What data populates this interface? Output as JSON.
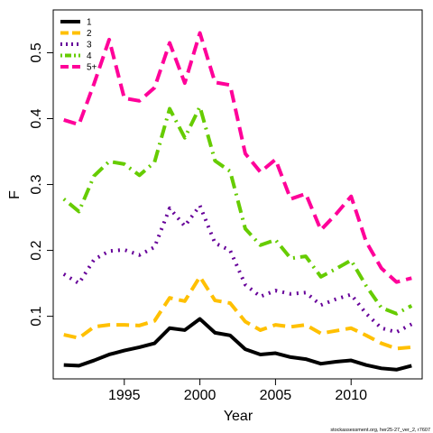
{
  "chart_data": {
    "type": "line",
    "title": "",
    "xlabel": "Year",
    "ylabel": "F",
    "xlim": [
      1990.3,
      2014.7
    ],
    "ylim": [
      0.005,
      0.565
    ],
    "x_ticks": [
      1995,
      2000,
      2005,
      2010
    ],
    "y_ticks": [
      0.1,
      0.2,
      0.3,
      0.4,
      0.5
    ],
    "grid": false,
    "legend_position": "top-left",
    "x": [
      1991,
      1992,
      1993,
      1994,
      1995,
      1996,
      1997,
      1998,
      1999,
      2000,
      2001,
      2002,
      2003,
      2004,
      2005,
      2006,
      2007,
      2008,
      2009,
      2010,
      2011,
      2012,
      2013,
      2014
    ],
    "series": [
      {
        "name": "1",
        "color": "#000000",
        "dash": "solid",
        "values": [
          0.026,
          0.025,
          0.033,
          0.042,
          0.048,
          0.053,
          0.059,
          0.082,
          0.079,
          0.096,
          0.075,
          0.071,
          0.05,
          0.042,
          0.044,
          0.038,
          0.035,
          0.028,
          0.031,
          0.033,
          0.026,
          0.021,
          0.019,
          0.025
        ]
      },
      {
        "name": "2",
        "color": "#FFC000",
        "dash": "long-dash",
        "values": [
          0.072,
          0.067,
          0.084,
          0.087,
          0.087,
          0.086,
          0.093,
          0.128,
          0.123,
          0.16,
          0.124,
          0.12,
          0.092,
          0.079,
          0.087,
          0.084,
          0.087,
          0.074,
          0.078,
          0.082,
          0.071,
          0.059,
          0.051,
          0.053
        ]
      },
      {
        "name": "3",
        "color": "#660099",
        "dash": "dotted",
        "values": [
          0.164,
          0.15,
          0.186,
          0.199,
          0.201,
          0.193,
          0.205,
          0.264,
          0.237,
          0.268,
          0.211,
          0.2,
          0.148,
          0.13,
          0.139,
          0.134,
          0.136,
          0.117,
          0.126,
          0.133,
          0.104,
          0.082,
          0.076,
          0.088
        ]
      },
      {
        "name": "4",
        "color": "#66CC00",
        "dash": "dot-dash",
        "values": [
          0.278,
          0.259,
          0.313,
          0.335,
          0.331,
          0.314,
          0.334,
          0.415,
          0.371,
          0.418,
          0.336,
          0.32,
          0.233,
          0.208,
          0.216,
          0.188,
          0.191,
          0.16,
          0.172,
          0.185,
          0.146,
          0.113,
          0.104,
          0.116
        ]
      },
      {
        "name": "5+",
        "color": "#FF0099",
        "dash": "long-dash",
        "values": [
          0.398,
          0.391,
          0.453,
          0.52,
          0.431,
          0.427,
          0.447,
          0.515,
          0.454,
          0.53,
          0.455,
          0.451,
          0.347,
          0.319,
          0.338,
          0.278,
          0.286,
          0.231,
          0.255,
          0.282,
          0.213,
          0.173,
          0.152,
          0.158
        ]
      }
    ]
  },
  "footnote": "stockassessment.org, her25-27_ver_2, r7607"
}
